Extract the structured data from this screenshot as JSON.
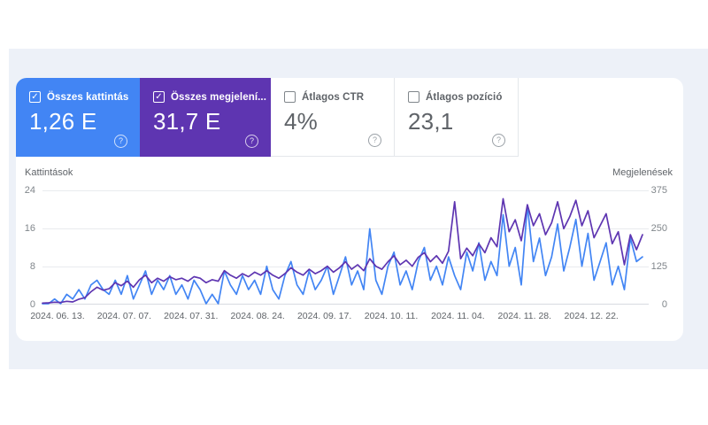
{
  "app": "Search Console teljesítmény",
  "colors": {
    "page_bg": "#ffffff",
    "panel_bg": "#edf1f8",
    "clicks_accent": "#4285f4",
    "impressions_accent": "#5e35b1",
    "grid_line": "#e9ebee",
    "axis_line": "#d8dbe0",
    "muted_text": "#5f6368",
    "tick_text": "#80868b"
  },
  "cards": [
    {
      "id": "total-clicks",
      "label": "Összes kattintás",
      "value": "1,26 E",
      "checked": true,
      "bg": "#4285f4",
      "help_glyph": "?"
    },
    {
      "id": "total-impressions",
      "label": "Összes megjelení...",
      "value": "31,7 E",
      "checked": true,
      "bg": "#5e35b1",
      "help_glyph": "?"
    },
    {
      "id": "average-ctr",
      "label": "Átlagos CTR",
      "value": "4%",
      "checked": false,
      "bg": "#ffffff",
      "help_glyph": "?"
    },
    {
      "id": "average-position",
      "label": "Átlagos pozíció",
      "value": "23,1",
      "checked": false,
      "bg": "#ffffff",
      "help_glyph": "?"
    }
  ],
  "chart_data": {
    "type": "line",
    "ylabel_left": "Kattintások",
    "ylabel_right": "Megjelenések",
    "ylim_left": [
      0,
      24
    ],
    "ylim_right": [
      0,
      375
    ],
    "left_ticks": [
      "24",
      "16",
      "8",
      "0"
    ],
    "right_ticks": [
      "375",
      "250",
      "125",
      "0"
    ],
    "x_tick_labels": [
      "2024. 06. 13.",
      "2024. 07. 07.",
      "2024. 07. 31.",
      "2024. 08. 24.",
      "2024. 09. 17.",
      "2024. 10. 11.",
      "2024. 11. 04.",
      "2024. 11. 28.",
      "2024. 12. 22."
    ],
    "grid": true,
    "legend": "none",
    "series": [
      {
        "name": "Kattintások",
        "axis": "left",
        "color": "#4285f4",
        "values": [
          0,
          0,
          1,
          0,
          2,
          1,
          3,
          1,
          4,
          5,
          3,
          2,
          5,
          2,
          6,
          1,
          4,
          7,
          2,
          5,
          3,
          6,
          2,
          4,
          1,
          5,
          3,
          0,
          2,
          0,
          7,
          4,
          2,
          6,
          3,
          5,
          2,
          8,
          3,
          1,
          6,
          9,
          4,
          2,
          7,
          3,
          5,
          8,
          2,
          6,
          10,
          4,
          7,
          3,
          16,
          5,
          2,
          8,
          11,
          4,
          7,
          3,
          9,
          12,
          5,
          8,
          4,
          10,
          6,
          3,
          11,
          7,
          13,
          5,
          9,
          6,
          19,
          8,
          12,
          4,
          21,
          9,
          14,
          6,
          10,
          17,
          7,
          12,
          18,
          8,
          15,
          5,
          9,
          13,
          4,
          8,
          3,
          14,
          9,
          10
        ]
      },
      {
        "name": "Megjelenések",
        "axis": "right",
        "color": "#5e35b1",
        "values": [
          2,
          3,
          5,
          4,
          8,
          6,
          15,
          20,
          40,
          55,
          45,
          50,
          70,
          60,
          75,
          55,
          80,
          95,
          70,
          85,
          75,
          90,
          80,
          85,
          75,
          90,
          85,
          70,
          80,
          75,
          110,
          95,
          85,
          100,
          90,
          105,
          95,
          110,
          95,
          85,
          100,
          120,
          105,
          95,
          115,
          100,
          110,
          125,
          105,
          120,
          140,
          115,
          130,
          110,
          150,
          125,
          115,
          140,
          160,
          130,
          145,
          125,
          155,
          170,
          140,
          160,
          135,
          175,
          340,
          150,
          185,
          160,
          200,
          170,
          220,
          190,
          350,
          240,
          280,
          210,
          330,
          260,
          300,
          230,
          270,
          340,
          250,
          290,
          345,
          260,
          310,
          220,
          260,
          300,
          200,
          240,
          130,
          230,
          180,
          230
        ]
      }
    ]
  }
}
